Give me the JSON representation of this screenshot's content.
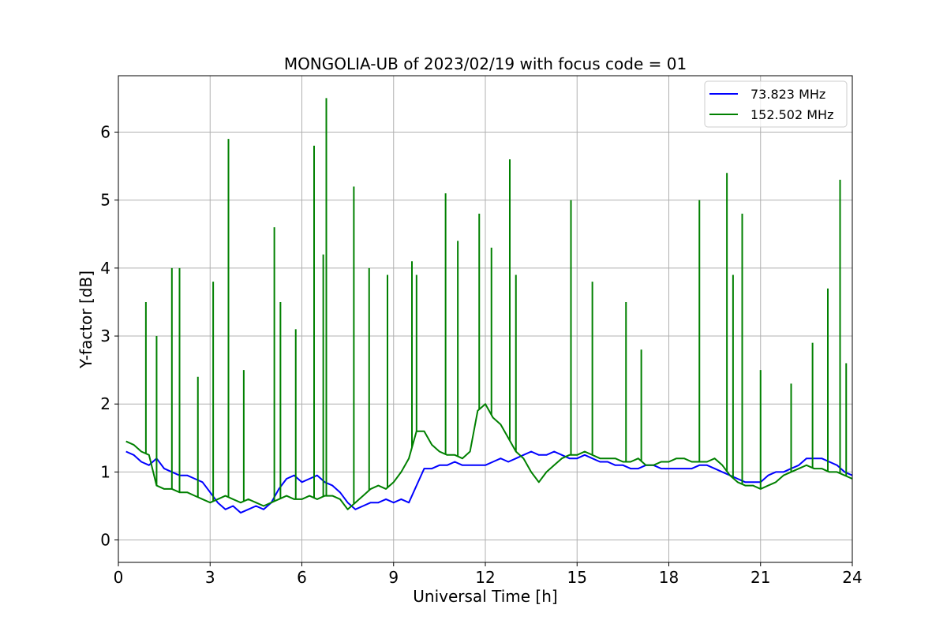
{
  "chart_data": {
    "type": "line",
    "title": "MONGOLIA-UB of 2023/02/19 with focus code = 01",
    "xlabel": "Universal Time [h]",
    "ylabel": "Y-factor [dB]",
    "xlim": [
      0,
      24
    ],
    "ylim": [
      -0.33,
      6.83
    ],
    "xticks": [
      0,
      3,
      6,
      9,
      12,
      15,
      18,
      21,
      24
    ],
    "yticks": [
      0,
      1,
      2,
      3,
      4,
      5,
      6
    ],
    "xtick_labels": [
      "0",
      "3",
      "6",
      "9",
      "12",
      "15",
      "18",
      "21",
      "24"
    ],
    "ytick_labels": [
      "0",
      "1",
      "2",
      "3",
      "4",
      "5",
      "6"
    ],
    "grid": true,
    "legend_position": "top-right",
    "series": [
      {
        "name": " 73.823 MHz",
        "color": "#0000ff",
        "x": [
          0.25,
          0.5,
          0.75,
          1.0,
          1.25,
          1.5,
          1.75,
          2.0,
          2.25,
          2.5,
          2.75,
          3.0,
          3.25,
          3.5,
          3.75,
          4.0,
          4.25,
          4.5,
          4.75,
          5.0,
          5.25,
          5.5,
          5.75,
          6.0,
          6.25,
          6.5,
          6.75,
          7.0,
          7.25,
          7.5,
          7.75,
          8.0,
          8.25,
          8.5,
          8.75,
          9.0,
          9.25,
          9.5,
          9.75,
          10.0,
          10.25,
          10.5,
          10.75,
          11.0,
          11.25,
          11.5,
          11.75,
          12.0,
          12.25,
          12.5,
          12.75,
          13.0,
          13.25,
          13.5,
          13.75,
          14.0,
          14.25,
          14.5,
          14.75,
          15.0,
          15.25,
          15.5,
          15.75,
          16.0,
          16.25,
          16.5,
          16.75,
          17.0,
          17.25,
          17.5,
          17.75,
          18.0,
          18.25,
          18.5,
          18.75,
          19.0,
          19.25,
          19.5,
          19.75,
          20.0,
          20.25,
          20.5,
          20.75,
          21.0,
          21.25,
          21.5,
          21.75,
          22.0,
          22.25,
          22.5,
          22.75,
          23.0,
          23.25,
          23.5,
          23.75,
          24.0
        ],
        "y": [
          1.3,
          1.25,
          1.15,
          1.1,
          1.2,
          1.05,
          1.0,
          0.95,
          0.95,
          0.9,
          0.85,
          0.7,
          0.55,
          0.45,
          0.5,
          0.4,
          0.45,
          0.5,
          0.45,
          0.55,
          0.75,
          0.9,
          0.95,
          0.85,
          0.9,
          0.95,
          0.85,
          0.8,
          0.7,
          0.55,
          0.45,
          0.5,
          0.55,
          0.55,
          0.6,
          0.55,
          0.6,
          0.55,
          0.8,
          1.05,
          1.05,
          1.1,
          1.1,
          1.15,
          1.1,
          1.1,
          1.1,
          1.1,
          1.15,
          1.2,
          1.15,
          1.2,
          1.25,
          1.3,
          1.25,
          1.25,
          1.3,
          1.25,
          1.2,
          1.2,
          1.25,
          1.2,
          1.15,
          1.15,
          1.1,
          1.1,
          1.05,
          1.05,
          1.1,
          1.1,
          1.05,
          1.05,
          1.05,
          1.05,
          1.05,
          1.1,
          1.1,
          1.05,
          1.0,
          0.95,
          0.9,
          0.85,
          0.85,
          0.85,
          0.95,
          1.0,
          1.0,
          1.05,
          1.1,
          1.2,
          1.2,
          1.2,
          1.15,
          1.1,
          1.0,
          0.95
        ]
      },
      {
        "name": "152.502 MHz",
        "color": "#008000",
        "x": [
          0.25,
          0.5,
          0.75,
          1.0,
          1.25,
          1.5,
          1.75,
          2.0,
          2.25,
          2.5,
          2.75,
          3.0,
          3.25,
          3.5,
          3.75,
          4.0,
          4.25,
          4.5,
          4.75,
          5.0,
          5.25,
          5.5,
          5.75,
          6.0,
          6.25,
          6.5,
          6.75,
          7.0,
          7.25,
          7.5,
          7.75,
          8.0,
          8.25,
          8.5,
          8.75,
          9.0,
          9.25,
          9.5,
          9.75,
          10.0,
          10.25,
          10.5,
          10.75,
          11.0,
          11.25,
          11.5,
          11.75,
          12.0,
          12.25,
          12.5,
          12.75,
          13.0,
          13.25,
          13.5,
          13.75,
          14.0,
          14.25,
          14.5,
          14.75,
          15.0,
          15.25,
          15.5,
          15.75,
          16.0,
          16.25,
          16.5,
          16.75,
          17.0,
          17.25,
          17.5,
          17.75,
          18.0,
          18.25,
          18.5,
          18.75,
          19.0,
          19.25,
          19.5,
          19.75,
          20.0,
          20.25,
          20.5,
          20.75,
          21.0,
          21.25,
          21.5,
          21.75,
          22.0,
          22.25,
          22.5,
          22.75,
          23.0,
          23.25,
          23.5,
          23.75,
          24.0
        ],
        "y": [
          1.45,
          1.4,
          1.3,
          1.25,
          0.8,
          0.75,
          0.75,
          0.7,
          0.7,
          0.65,
          0.6,
          0.55,
          0.6,
          0.65,
          0.6,
          0.55,
          0.6,
          0.55,
          0.5,
          0.55,
          0.6,
          0.65,
          0.6,
          0.6,
          0.65,
          0.6,
          0.65,
          0.65,
          0.6,
          0.45,
          0.55,
          0.65,
          0.75,
          0.8,
          0.75,
          0.85,
          1.0,
          1.2,
          1.6,
          1.6,
          1.4,
          1.3,
          1.25,
          1.25,
          1.2,
          1.3,
          1.9,
          2.0,
          1.8,
          1.7,
          1.5,
          1.3,
          1.2,
          1.0,
          0.85,
          1.0,
          1.1,
          1.2,
          1.25,
          1.25,
          1.3,
          1.25,
          1.2,
          1.2,
          1.2,
          1.15,
          1.15,
          1.2,
          1.1,
          1.1,
          1.15,
          1.15,
          1.2,
          1.2,
          1.15,
          1.15,
          1.15,
          1.2,
          1.1,
          0.95,
          0.85,
          0.8,
          0.8,
          0.75,
          0.8,
          0.85,
          0.95,
          1.0,
          1.05,
          1.1,
          1.05,
          1.05,
          1.0,
          1.0,
          0.95,
          0.9
        ]
      },
      {
        "name": "",
        "color": "#008000",
        "note": "spikes",
        "x": [
          0.9,
          1.25,
          1.75,
          2.0,
          2.6,
          3.1,
          3.6,
          4.1,
          5.1,
          5.3,
          5.8,
          6.4,
          6.7,
          6.8,
          7.7,
          8.2,
          8.8,
          9.6,
          9.75,
          10.7,
          11.1,
          11.8,
          12.2,
          12.8,
          13.0,
          14.8,
          15.5,
          16.6,
          17.1,
          19.0,
          19.9,
          20.1,
          20.4,
          21.0,
          22.0,
          22.7,
          23.2,
          23.6,
          23.8
        ],
        "y": [
          3.5,
          3.0,
          4.0,
          4.0,
          2.4,
          3.8,
          5.9,
          2.5,
          4.6,
          3.5,
          3.1,
          5.8,
          4.2,
          6.5,
          5.2,
          4.0,
          3.9,
          4.1,
          3.9,
          5.1,
          4.4,
          4.8,
          4.3,
          5.6,
          3.9,
          5.0,
          3.8,
          3.5,
          2.8,
          5.0,
          5.4,
          3.9,
          4.8,
          2.5,
          2.3,
          2.9,
          3.7,
          5.3,
          2.6
        ]
      }
    ]
  }
}
